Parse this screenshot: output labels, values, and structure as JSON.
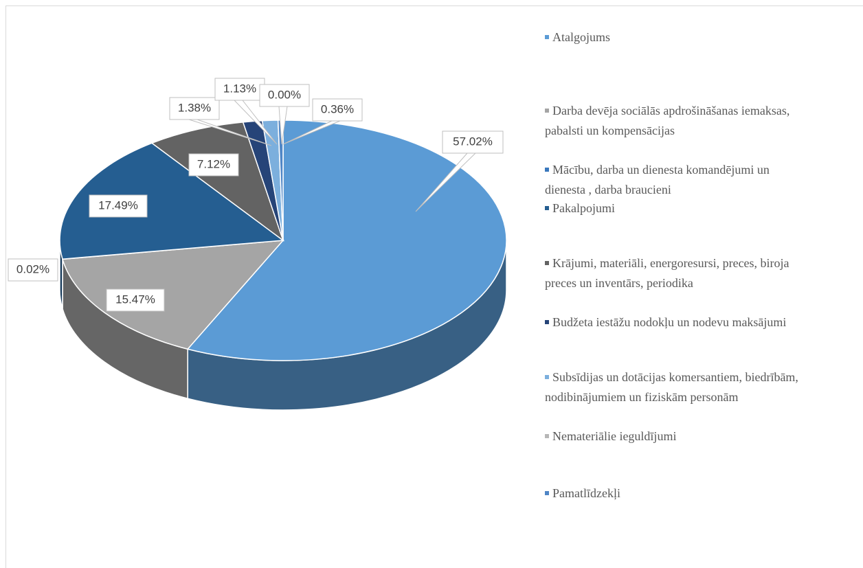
{
  "chart_data": {
    "type": "pie3d",
    "categories": [
      "Atalgojums",
      "Darba devēja sociālās apdrošināšanas iemaksas, pabalsti un kompensācijas",
      "Mācību, darba un dienesta komandējumi un dienesta , darba braucieni",
      "Pakalpojumi",
      "Krājumi, materiāli, energoresursi, preces, biroja preces un inventārs, periodika",
      "Budžeta iestāžu nodokļu un nodevu maksājumi",
      "Subsīdijas un dotācijas komersantiem, biedrībām, nodibinājumiem un fiziskām personām",
      "Nemateriālie ieguldījumi",
      "Pamatlīdzekļi"
    ],
    "values": [
      57.02,
      15.47,
      0.02,
      17.49,
      7.12,
      1.38,
      1.13,
      0.0,
      0.36
    ],
    "value_labels": [
      "57.02%",
      "15.47%",
      "0.02%",
      "17.49%",
      "7.12%",
      "1.38%",
      "1.13%",
      "0.00%",
      "0.36%"
    ],
    "colors": [
      "#5b9bd5",
      "#a5a5a5",
      "#3a78bd",
      "#255e91",
      "#636363",
      "#264478",
      "#7cafdd",
      "#b7b7b7",
      "#4f86c6"
    ],
    "legend": "right"
  }
}
